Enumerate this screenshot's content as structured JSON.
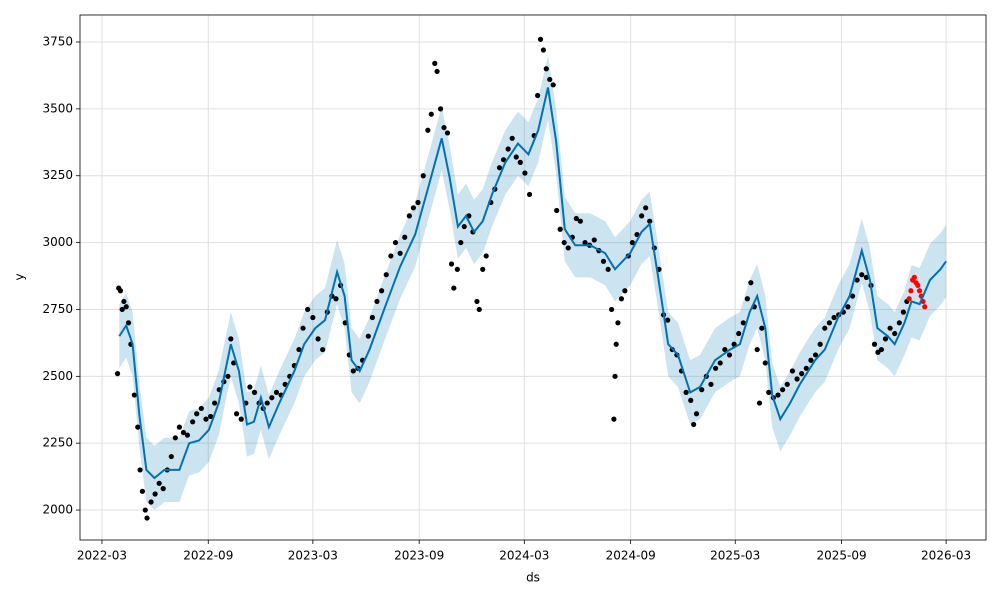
{
  "chart_data": {
    "type": "combo",
    "x_label": "ds",
    "y_label": "y",
    "xlim": [
      "2022-01-22",
      "2026-05-09"
    ],
    "xticks": [
      {
        "value": "2022-03",
        "label": "2022-03"
      },
      {
        "value": "2022-09",
        "label": "2022-09"
      },
      {
        "value": "2023-03",
        "label": "2023-03"
      },
      {
        "value": "2023-09",
        "label": "2023-09"
      },
      {
        "value": "2024-03",
        "label": "2024-03"
      },
      {
        "value": "2024-09",
        "label": "2024-09"
      },
      {
        "value": "2025-03",
        "label": "2025-03"
      },
      {
        "value": "2025-09",
        "label": "2025-09"
      },
      {
        "value": "2026-03",
        "label": "2026-03"
      }
    ],
    "ylim": [
      1888,
      3851
    ],
    "yticks": [
      2000,
      2250,
      2500,
      2750,
      3000,
      3250,
      3500,
      3750
    ],
    "grid": true,
    "series": [
      {
        "type": "band",
        "color": "#0072B2",
        "x": [
          "2022-03-31",
          "2022-04-12",
          "2022-04-23",
          "2022-05-05",
          "2022-05-17",
          "2022-05-31",
          "2022-06-17",
          "2022-07-13",
          "2022-07-30",
          "2022-08-16",
          "2022-09-02",
          "2022-09-19",
          "2022-10-10",
          "2022-10-24",
          "2022-11-07",
          "2022-11-19",
          "2022-12-01",
          "2022-12-15",
          "2023-01-02",
          "2023-01-28",
          "2023-02-14",
          "2023-03-05",
          "2023-03-22",
          "2023-04-12",
          "2023-04-25",
          "2023-05-07",
          "2023-05-21",
          "2023-06-07",
          "2023-07-04",
          "2023-07-30",
          "2023-08-25",
          "2023-09-16",
          "2023-10-10",
          "2023-10-24",
          "2023-11-07",
          "2023-11-21",
          "2023-12-05",
          "2023-12-20",
          "2024-01-05",
          "2024-01-28",
          "2024-02-19",
          "2024-03-08",
          "2024-03-25",
          "2024-04-11",
          "2024-04-25",
          "2024-05-10",
          "2024-05-28",
          "2024-06-23",
          "2024-07-19",
          "2024-08-05",
          "2024-08-31",
          "2024-09-20",
          "2024-10-04",
          "2024-10-18",
          "2024-11-05",
          "2024-11-22",
          "2024-12-13",
          "2024-12-30",
          "2025-01-25",
          "2025-02-20",
          "2025-03-09",
          "2025-03-26",
          "2025-04-08",
          "2025-04-22",
          "2025-05-04",
          "2025-05-18",
          "2025-06-04",
          "2025-06-21",
          "2025-07-17",
          "2025-08-03",
          "2025-08-26",
          "2025-09-15",
          "2025-10-06",
          "2025-10-20",
          "2025-11-02",
          "2025-11-20",
          "2025-12-02",
          "2025-12-19",
          "2025-12-31",
          "2026-01-14",
          "2026-02-01",
          "2026-02-19",
          "2026-03-01"
        ],
        "lower": [
          2530,
          2570,
          2500,
          2230,
          2030,
          2000,
          2030,
          2030,
          2130,
          2140,
          2180,
          2280,
          2500,
          2400,
          2200,
          2210,
          2300,
          2190,
          2280,
          2400,
          2500,
          2560,
          2590,
          2770,
          2680,
          2440,
          2400,
          2480,
          2640,
          2790,
          2910,
          3080,
          3270,
          3120,
          2940,
          2980,
          2920,
          2960,
          3060,
          3180,
          3250,
          3210,
          3300,
          3460,
          3260,
          2930,
          2870,
          2870,
          2840,
          2780,
          2840,
          2920,
          2950,
          2760,
          2500,
          2460,
          2320,
          2340,
          2440,
          2480,
          2500,
          2620,
          2680,
          2560,
          2310,
          2220,
          2280,
          2350,
          2440,
          2480,
          2600,
          2680,
          2850,
          2740,
          2560,
          2530,
          2500,
          2580,
          2645,
          2635,
          2725,
          2765,
          2795
        ],
        "upper": [
          2770,
          2810,
          2740,
          2470,
          2270,
          2240,
          2270,
          2270,
          2370,
          2380,
          2420,
          2520,
          2740,
          2640,
          2440,
          2450,
          2540,
          2430,
          2520,
          2640,
          2740,
          2800,
          2830,
          3010,
          2920,
          2680,
          2640,
          2720,
          2880,
          3030,
          3150,
          3320,
          3510,
          3360,
          3180,
          3220,
          3160,
          3200,
          3300,
          3420,
          3490,
          3450,
          3540,
          3700,
          3500,
          3170,
          3110,
          3110,
          3080,
          3020,
          3080,
          3160,
          3190,
          3000,
          2740,
          2700,
          2560,
          2580,
          2680,
          2720,
          2740,
          2860,
          2920,
          2800,
          2550,
          2460,
          2520,
          2590,
          2680,
          2720,
          2840,
          2920,
          3090,
          2980,
          2800,
          2770,
          2740,
          2820,
          2915,
          2905,
          2995,
          3035,
          3065
        ]
      },
      {
        "type": "scatter",
        "color": "#000000",
        "x": [
          "2022-03-28",
          "2022-03-30",
          "2022-04-02",
          "2022-04-05",
          "2022-04-08",
          "2022-04-12",
          "2022-04-16",
          "2022-04-20",
          "2022-04-26",
          "2022-05-02",
          "2022-05-06",
          "2022-05-10",
          "2022-05-15",
          "2022-05-18",
          "2022-05-25",
          "2022-06-01",
          "2022-06-08",
          "2022-06-15",
          "2022-06-22",
          "2022-06-29",
          "2022-07-06",
          "2022-07-13",
          "2022-07-20",
          "2022-07-27",
          "2022-08-05",
          "2022-08-12",
          "2022-08-20",
          "2022-08-28",
          "2022-09-05",
          "2022-09-12",
          "2022-09-20",
          "2022-09-28",
          "2022-10-05",
          "2022-10-10",
          "2022-10-15",
          "2022-10-20",
          "2022-10-28",
          "2022-11-05",
          "2022-11-12",
          "2022-11-20",
          "2022-11-28",
          "2022-12-05",
          "2022-12-12",
          "2022-12-20",
          "2022-12-28",
          "2023-01-05",
          "2023-01-12",
          "2023-01-20",
          "2023-01-28",
          "2023-02-05",
          "2023-02-12",
          "2023-02-20",
          "2023-03-01",
          "2023-03-10",
          "2023-03-18",
          "2023-03-26",
          "2023-04-03",
          "2023-04-10",
          "2023-04-18",
          "2023-04-26",
          "2023-05-03",
          "2023-05-10",
          "2023-05-18",
          "2023-05-26",
          "2023-06-05",
          "2023-06-12",
          "2023-06-20",
          "2023-06-28",
          "2023-07-06",
          "2023-07-14",
          "2023-07-22",
          "2023-07-30",
          "2023-08-07",
          "2023-08-15",
          "2023-08-22",
          "2023-08-30",
          "2023-09-08",
          "2023-09-16",
          "2023-09-22",
          "2023-09-28",
          "2023-10-02",
          "2023-10-08",
          "2023-10-14",
          "2023-10-20",
          "2023-10-27",
          "2023-10-31",
          "2023-11-06",
          "2023-11-12",
          "2023-11-18",
          "2023-11-26",
          "2023-12-03",
          "2023-12-10",
          "2023-12-14",
          "2023-12-20",
          "2023-12-26",
          "2024-01-03",
          "2024-01-10",
          "2024-01-18",
          "2024-01-25",
          "2024-02-02",
          "2024-02-09",
          "2024-02-16",
          "2024-02-23",
          "2024-03-02",
          "2024-03-10",
          "2024-03-18",
          "2024-03-24",
          "2024-03-29",
          "2024-04-03",
          "2024-04-08",
          "2024-04-14",
          "2024-04-20",
          "2024-04-26",
          "2024-05-02",
          "2024-05-09",
          "2024-05-16",
          "2024-05-23",
          "2024-05-30",
          "2024-06-06",
          "2024-06-14",
          "2024-06-22",
          "2024-06-30",
          "2024-07-08",
          "2024-07-16",
          "2024-07-24",
          "2024-07-30",
          "2024-08-03",
          "2024-08-05",
          "2024-08-07",
          "2024-08-10",
          "2024-08-16",
          "2024-08-22",
          "2024-08-28",
          "2024-09-04",
          "2024-09-12",
          "2024-09-20",
          "2024-09-27",
          "2024-10-04",
          "2024-10-12",
          "2024-10-20",
          "2024-10-28",
          "2024-11-04",
          "2024-11-12",
          "2024-11-20",
          "2024-11-28",
          "2024-12-06",
          "2024-12-14",
          "2024-12-19",
          "2024-12-24",
          "2025-01-02",
          "2025-01-10",
          "2025-01-18",
          "2025-01-26",
          "2025-02-03",
          "2025-02-11",
          "2025-02-19",
          "2025-02-27",
          "2025-03-07",
          "2025-03-15",
          "2025-03-22",
          "2025-03-28",
          "2025-04-03",
          "2025-04-08",
          "2025-04-12",
          "2025-04-16",
          "2025-04-22",
          "2025-04-28",
          "2025-05-06",
          "2025-05-14",
          "2025-05-22",
          "2025-05-30",
          "2025-06-08",
          "2025-06-16",
          "2025-06-24",
          "2025-07-02",
          "2025-07-10",
          "2025-07-18",
          "2025-07-26",
          "2025-08-03",
          "2025-08-11",
          "2025-08-19",
          "2025-08-27",
          "2025-09-04",
          "2025-09-12",
          "2025-09-20",
          "2025-09-28",
          "2025-10-06",
          "2025-10-14",
          "2025-10-22",
          "2025-10-28",
          "2025-11-03",
          "2025-11-09",
          "2025-11-16",
          "2025-11-24",
          "2025-12-02",
          "2025-12-10",
          "2025-12-17",
          "2025-12-23"
        ],
        "values": [
          2510,
          2830,
          2820,
          2750,
          2780,
          2760,
          2700,
          2620,
          2430,
          2310,
          2150,
          2070,
          2000,
          1970,
          2030,
          2060,
          2100,
          2080,
          2150,
          2200,
          2270,
          2310,
          2290,
          2280,
          2330,
          2360,
          2380,
          2340,
          2350,
          2400,
          2450,
          2480,
          2500,
          2640,
          2550,
          2360,
          2340,
          2400,
          2460,
          2440,
          2400,
          2380,
          2400,
          2420,
          2440,
          2430,
          2470,
          2500,
          2540,
          2600,
          2680,
          2750,
          2720,
          2640,
          2600,
          2740,
          2800,
          2790,
          2840,
          2700,
          2580,
          2520,
          2530,
          2560,
          2650,
          2720,
          2780,
          2820,
          2880,
          2950,
          3000,
          2960,
          3020,
          3100,
          3130,
          3150,
          3250,
          3420,
          3480,
          3670,
          3640,
          3500,
          3430,
          3410,
          2920,
          2830,
          2900,
          3000,
          3060,
          3100,
          3040,
          2780,
          2750,
          2900,
          2950,
          3150,
          3200,
          3280,
          3310,
          3350,
          3390,
          3320,
          3300,
          3260,
          3180,
          3400,
          3550,
          3760,
          3720,
          3650,
          3610,
          3590,
          3120,
          3050,
          3000,
          2980,
          3020,
          3090,
          3080,
          3000,
          2990,
          3010,
          2970,
          2930,
          2900,
          2750,
          2340,
          2500,
          2620,
          2700,
          2790,
          2820,
          2950,
          3000,
          3030,
          3100,
          3130,
          3080,
          2980,
          2900,
          2730,
          2710,
          2600,
          2580,
          2520,
          2440,
          2410,
          2320,
          2360,
          2450,
          2500,
          2470,
          2530,
          2550,
          2600,
          2580,
          2620,
          2660,
          2700,
          2790,
          2850,
          2760,
          2600,
          2400,
          2680,
          2550,
          2440,
          2420,
          2430,
          2450,
          2470,
          2520,
          2490,
          2510,
          2530,
          2560,
          2580,
          2620,
          2680,
          2700,
          2720,
          2730,
          2740,
          2760,
          2800,
          2860,
          2880,
          2870,
          2840,
          2620,
          2590,
          2600,
          2640,
          2680,
          2660,
          2700,
          2740,
          2780
        ]
      },
      {
        "type": "scatter",
        "color": "#ff0000",
        "x": [
          "2025-12-27",
          "2025-12-30",
          "2026-01-02",
          "2026-01-05",
          "2026-01-08",
          "2026-01-11",
          "2026-01-14",
          "2026-01-17",
          "2026-01-20",
          "2026-01-23"
        ],
        "values": [
          2790,
          2820,
          2860,
          2870,
          2850,
          2840,
          2820,
          2800,
          2780,
          2760
        ]
      },
      {
        "type": "line",
        "color": "#0072B2",
        "x": [
          "2022-03-31",
          "2022-04-12",
          "2022-04-23",
          "2022-05-05",
          "2022-05-17",
          "2022-05-31",
          "2022-06-17",
          "2022-07-13",
          "2022-07-30",
          "2022-08-16",
          "2022-09-02",
          "2022-09-19",
          "2022-10-10",
          "2022-10-24",
          "2022-11-07",
          "2022-11-19",
          "2022-12-01",
          "2022-12-15",
          "2023-01-02",
          "2023-01-28",
          "2023-02-14",
          "2023-03-05",
          "2023-03-22",
          "2023-04-12",
          "2023-04-25",
          "2023-05-07",
          "2023-05-21",
          "2023-06-07",
          "2023-07-04",
          "2023-07-30",
          "2023-08-25",
          "2023-09-16",
          "2023-10-10",
          "2023-10-24",
          "2023-11-07",
          "2023-11-21",
          "2023-12-05",
          "2023-12-20",
          "2024-01-05",
          "2024-01-28",
          "2024-02-19",
          "2024-03-08",
          "2024-03-25",
          "2024-04-11",
          "2024-04-25",
          "2024-05-10",
          "2024-05-28",
          "2024-06-23",
          "2024-07-19",
          "2024-08-05",
          "2024-08-31",
          "2024-09-20",
          "2024-10-04",
          "2024-10-18",
          "2024-11-05",
          "2024-11-22",
          "2024-12-13",
          "2024-12-30",
          "2025-01-25",
          "2025-02-20",
          "2025-03-09",
          "2025-03-26",
          "2025-04-08",
          "2025-04-22",
          "2025-05-04",
          "2025-05-18",
          "2025-06-04",
          "2025-06-21",
          "2025-07-17",
          "2025-08-03",
          "2025-08-26",
          "2025-09-15",
          "2025-10-06",
          "2025-10-20",
          "2025-11-02",
          "2025-11-20",
          "2025-12-02",
          "2025-12-19",
          "2025-12-31",
          "2026-01-14",
          "2026-02-01",
          "2026-02-19",
          "2026-03-01"
        ],
        "values": [
          2650,
          2690,
          2620,
          2350,
          2150,
          2120,
          2150,
          2150,
          2250,
          2260,
          2300,
          2400,
          2620,
          2520,
          2320,
          2330,
          2420,
          2310,
          2400,
          2520,
          2620,
          2680,
          2710,
          2890,
          2800,
          2560,
          2520,
          2600,
          2760,
          2910,
          3030,
          3200,
          3390,
          3240,
          3060,
          3100,
          3040,
          3080,
          3180,
          3300,
          3370,
          3330,
          3420,
          3580,
          3380,
          3050,
          2990,
          2990,
          2960,
          2900,
          2960,
          3040,
          3070,
          2880,
          2620,
          2580,
          2440,
          2460,
          2560,
          2600,
          2620,
          2740,
          2800,
          2680,
          2430,
          2340,
          2400,
          2470,
          2560,
          2600,
          2720,
          2800,
          2970,
          2860,
          2680,
          2650,
          2620,
          2700,
          2780,
          2770,
          2860,
          2900,
          2930
        ]
      }
    ]
  }
}
